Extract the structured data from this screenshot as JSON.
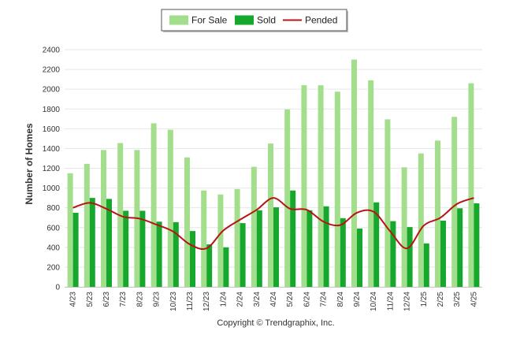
{
  "chart_data": {
    "type": "bar",
    "title": "",
    "xlabel": "",
    "ylabel": "Number of Homes",
    "ylim": [
      0,
      2400
    ],
    "yticks": [
      0,
      200,
      400,
      600,
      800,
      1000,
      1200,
      1400,
      1600,
      1800,
      2000,
      2200,
      2400
    ],
    "grid": true,
    "legend_position": "top-center",
    "categories": [
      "4/23",
      "5/23",
      "6/23",
      "7/23",
      "8/23",
      "9/23",
      "10/23",
      "11/23",
      "12/23",
      "1/24",
      "2/24",
      "3/24",
      "4/24",
      "5/24",
      "6/24",
      "7/24",
      "8/24",
      "9/24",
      "10/24",
      "11/24",
      "12/24",
      "1/25",
      "2/25",
      "3/25",
      "4/25"
    ],
    "series": [
      {
        "name": "For Sale",
        "type": "bar",
        "color": "#a3de8c",
        "values": [
          1150,
          1245,
          1385,
          1455,
          1385,
          1655,
          1590,
          1310,
          975,
          935,
          990,
          1215,
          1450,
          1795,
          2040,
          2040,
          1975,
          2300,
          2090,
          1695,
          1210,
          1350,
          1480,
          1720,
          2060
        ]
      },
      {
        "name": "Sold",
        "type": "bar",
        "color": "#16a82c",
        "values": [
          750,
          900,
          890,
          770,
          770,
          660,
          655,
          565,
          430,
          400,
          645,
          775,
          805,
          975,
          775,
          815,
          695,
          590,
          855,
          665,
          605,
          440,
          670,
          795,
          845
        ]
      },
      {
        "name": "Pended",
        "type": "line",
        "color": "#b81414",
        "values": [
          800,
          850,
          790,
          710,
          690,
          630,
          560,
          430,
          390,
          570,
          680,
          780,
          900,
          790,
          780,
          660,
          625,
          750,
          760,
          560,
          390,
          620,
          700,
          840,
          900
        ]
      }
    ]
  },
  "copyright": "Copyright © Trendgraphix, Inc."
}
